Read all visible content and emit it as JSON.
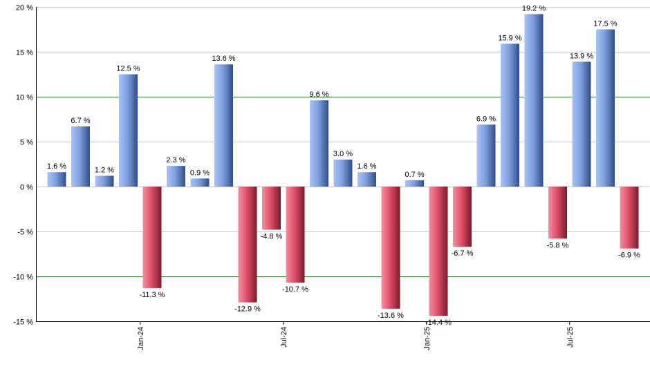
{
  "chart_data": {
    "type": "bar",
    "values": [
      1.6,
      6.7,
      1.2,
      12.5,
      -11.3,
      2.3,
      0.9,
      13.6,
      -12.9,
      -4.8,
      -10.7,
      9.6,
      3.0,
      1.6,
      -13.6,
      0.7,
      -14.4,
      -6.7,
      6.9,
      15.9,
      19.2,
      -5.8,
      13.9,
      17.5,
      -6.9
    ],
    "value_labels": [
      "1.6 %",
      "6.7 %",
      "1.2 %",
      "12.5 %",
      "-11.3 %",
      "2.3 %",
      "0.9 %",
      "13.6 %",
      "-12.9 %",
      "-4.8 %",
      "-10.7 %",
      "9.6 %",
      "3.0 %",
      "1.6 %",
      "-13.6 %",
      "0.7 %",
      "-14.4 %",
      "-6.7 %",
      "6.9 %",
      "15.9 %",
      "19.2 %",
      "-5.8 %",
      "13.9 %",
      "17.5 %",
      "-6.9 %"
    ],
    "x_tick_labels": [
      {
        "label": "Jan-24",
        "bar_index": 3.5
      },
      {
        "label": "Jul-24",
        "bar_index": 9.5
      },
      {
        "label": "Jan-25",
        "bar_index": 15.5
      },
      {
        "label": "Jul-25",
        "bar_index": 21.5
      }
    ],
    "y_ticks": [
      20,
      15,
      10,
      5,
      0,
      -5,
      -10,
      -15
    ],
    "y_tick_labels": [
      "20 %",
      "15 %",
      "10 %",
      "5 %",
      "0 %",
      "-5 %",
      "-10 %",
      "-15 %"
    ],
    "ylim": [
      -15,
      20
    ],
    "highlight_gridlines": [
      10,
      -10
    ],
    "grid": true,
    "title": "",
    "xlabel": "",
    "ylabel": "",
    "colors": {
      "positive": "#7f9fe0",
      "positive_dark": "#2f4f8a",
      "negative": "#e0506a",
      "negative_dark": "#7a1a2c",
      "gridline": "#c8c8c8",
      "highlight_gridline": "#2e7d32",
      "axis": "#000000"
    }
  }
}
